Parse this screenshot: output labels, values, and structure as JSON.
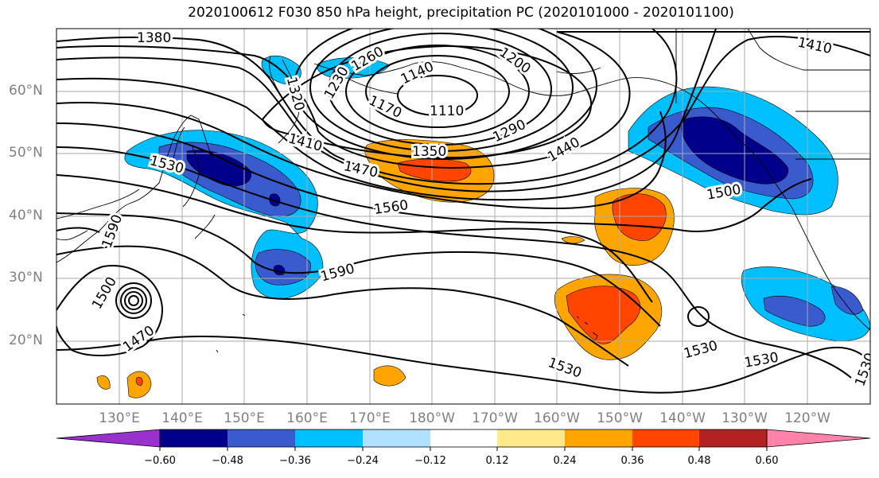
{
  "title": "2020100612 F030 850 hPa height, precipitation PC (2020101000 - 2020101100)",
  "colors": {
    "shading": [
      "#9932cc",
      "#00008b",
      "#3a5bcd",
      "#00bfff",
      "#b0e2ff",
      "#ffffff",
      "#ffe98a",
      "#ffa500",
      "#ff4500",
      "#b22222",
      "#ff82ab"
    ],
    "contour": "#000000",
    "coastline": "#000000",
    "grid": "#aaaaaa",
    "axis_label": "#808080"
  },
  "map": {
    "lon_labels": [
      "130°E",
      "140°E",
      "150°E",
      "160°E",
      "170°E",
      "180°W",
      "170°W",
      "160°W",
      "150°W",
      "140°W",
      "130°W",
      "120°W"
    ],
    "lat_labels": [
      "60°N",
      "50°N",
      "40°N",
      "30°N",
      "20°N"
    ],
    "contour_unit_field": "850 hPa geopotential height (m)",
    "contour_labels": [
      "1380",
      "1260",
      "1140",
      "1200",
      "1410",
      "1320",
      "1230",
      "1170",
      "1110",
      "1290",
      "1350",
      "1410",
      "1440",
      "1470",
      "1530",
      "1560",
      "1500",
      "1590",
      "1590",
      "1500",
      "1470",
      "1530",
      "1530",
      "1530",
      "1530"
    ]
  },
  "colorbar": {
    "ticks": [
      "−0.60",
      "−0.48",
      "−0.36",
      "−0.24",
      "−0.12",
      "0.12",
      "0.24",
      "0.36",
      "0.48",
      "0.60"
    ],
    "extend": "both"
  }
}
